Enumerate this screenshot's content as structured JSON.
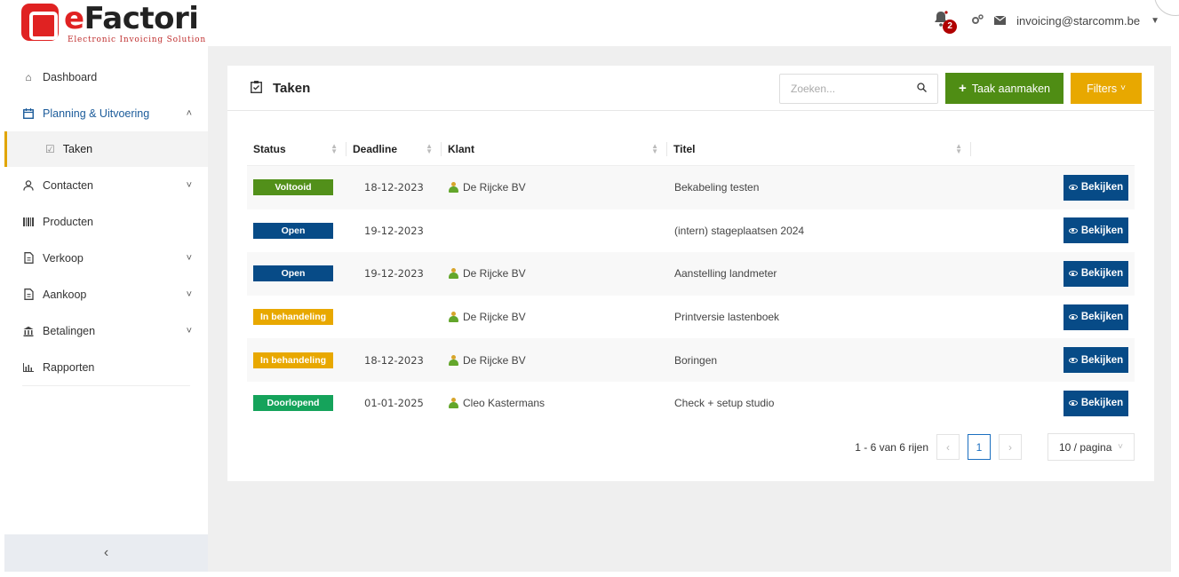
{
  "brand": {
    "name_first": "e",
    "name_rest": "Factori",
    "tagline": "Electronic Invoicing Solution"
  },
  "header": {
    "notification_count": "2",
    "user_email": "invoicing@starcomm.be"
  },
  "sidebar": {
    "items": [
      {
        "label": "Dashboard",
        "icon": "home-icon"
      },
      {
        "label": "Planning & Uitvoering",
        "icon": "calendar-icon"
      },
      {
        "label": "Taken",
        "icon": "task-check-icon"
      },
      {
        "label": "Contacten",
        "icon": "person-icon"
      },
      {
        "label": "Producten",
        "icon": "barcode-icon"
      },
      {
        "label": "Verkoop",
        "icon": "document-icon"
      },
      {
        "label": "Aankoop",
        "icon": "document-icon"
      },
      {
        "label": "Betalingen",
        "icon": "bank-icon"
      },
      {
        "label": "Rapporten",
        "icon": "bar-chart-icon"
      }
    ]
  },
  "page": {
    "title": "Taken",
    "search_placeholder": "Zoeken...",
    "create_label": "Taak aanmaken",
    "filters_label": "Filters"
  },
  "table": {
    "columns": [
      "Status",
      "Deadline",
      "Klant",
      "Titel"
    ],
    "rows": [
      {
        "status": "Voltooid",
        "status_color": "#52901a",
        "deadline": "18-12-2023",
        "client": "De Rijcke BV",
        "title": "Bekabeling testen",
        "action": "Bekijken"
      },
      {
        "status": "Open",
        "status_color": "#074b87",
        "deadline": "19-12-2023",
        "client": "",
        "title": "(intern) stageplaatsen 2024",
        "action": "Bekijken"
      },
      {
        "status": "Open",
        "status_color": "#074b87",
        "deadline": "19-12-2023",
        "client": "De Rijcke BV",
        "title": "Aanstelling landmeter",
        "action": "Bekijken"
      },
      {
        "status": "In behandeling",
        "status_color": "#e8a800",
        "deadline": "",
        "client": "De Rijcke BV",
        "title": "Printversie lastenboek",
        "action": "Bekijken"
      },
      {
        "status": "In behandeling",
        "status_color": "#e8a800",
        "deadline": "18-12-2023",
        "client": "De Rijcke BV",
        "title": "Boringen",
        "action": "Bekijken"
      },
      {
        "status": "Doorlopend",
        "status_color": "#15a35b",
        "deadline": "01-01-2025",
        "client": "Cleo Kastermans",
        "title": "Check + setup studio",
        "action": "Bekijken"
      }
    ]
  },
  "pagination": {
    "summary": "1 - 6 van 6 rijen",
    "current_page": "1",
    "page_size": "10 / pagina"
  },
  "colors": {
    "brand_red": "#e02222",
    "create_green": "#4f8d14",
    "filter_yellow": "#e8a800",
    "view_blue": "#074b87"
  }
}
